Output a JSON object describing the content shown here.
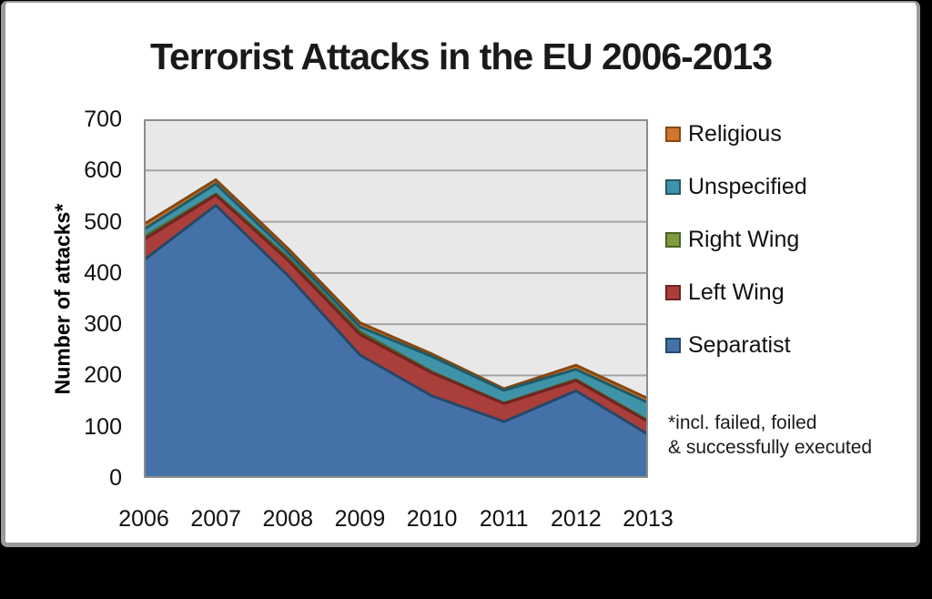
{
  "title": "Terrorist Attacks in the EU 2006-2013",
  "y_axis": {
    "label": "Number of attacks*",
    "ticks": [
      700,
      600,
      500,
      400,
      300,
      200,
      100,
      0
    ]
  },
  "x_axis": {
    "ticks": [
      "2006",
      "2007",
      "2008",
      "2009",
      "2010",
      "2011",
      "2012",
      "2013"
    ]
  },
  "legend": {
    "position": "right",
    "items": [
      {
        "label": "Religious",
        "fill": "#D0762F",
        "stroke": "#87470F"
      },
      {
        "label": "Unspecified",
        "fill": "#3F93A9",
        "stroke": "#1F5A69"
      },
      {
        "label": "Right Wing",
        "fill": "#7E9B43",
        "stroke": "#4E6323"
      },
      {
        "label": "Left Wing",
        "fill": "#A93E3B",
        "stroke": "#702422"
      },
      {
        "label": "Separatist",
        "fill": "#4472A8",
        "stroke": "#274768"
      }
    ]
  },
  "footnote": {
    "lines": [
      "*incl. failed, foiled",
      "& successfully executed"
    ]
  },
  "chart_data": {
    "type": "area",
    "stacked": true,
    "title": "Terrorist Attacks in the EU 2006-2013",
    "ylabel": "Number of attacks*",
    "xlabel": "",
    "ylim": [
      0,
      700
    ],
    "ytick_step": 100,
    "grid": true,
    "legend_position": "right",
    "plot_bg": "#E8E8E8",
    "gridline_color": "#A3A3A3",
    "plot_border_color": "#8C8C8C",
    "categories": [
      2006,
      2007,
      2008,
      2009,
      2010,
      2011,
      2012,
      2013
    ],
    "series": [
      {
        "name": "Separatist",
        "fill": "#4472A8",
        "stroke": "#274768",
        "values": [
          425,
          532,
          395,
          240,
          160,
          110,
          170,
          85
        ]
      },
      {
        "name": "Left Wing",
        "fill": "#A93E3B",
        "stroke": "#702422",
        "values": [
          40,
          20,
          30,
          40,
          45,
          35,
          20,
          25
        ]
      },
      {
        "name": "Right Wing",
        "fill": "#7E9B43",
        "stroke": "#4E6323",
        "values": [
          5,
          2,
          5,
          5,
          2,
          1,
          2,
          2
        ]
      },
      {
        "name": "Unspecified",
        "fill": "#3F93A9",
        "stroke": "#1F5A69",
        "values": [
          15,
          20,
          10,
          10,
          30,
          25,
          20,
          35
        ]
      },
      {
        "name": "Religious",
        "fill": "#D0762F",
        "stroke": "#87470F",
        "values": [
          10,
          8,
          8,
          8,
          5,
          3,
          8,
          8
        ]
      }
    ]
  }
}
